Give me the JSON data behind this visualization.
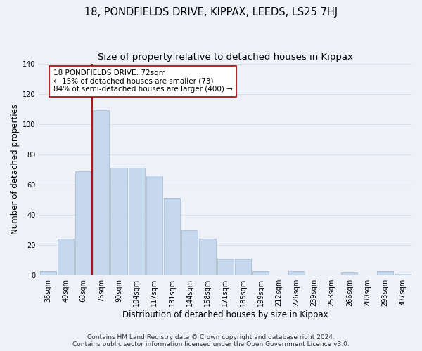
{
  "title": "18, PONDFIELDS DRIVE, KIPPAX, LEEDS, LS25 7HJ",
  "subtitle": "Size of property relative to detached houses in Kippax",
  "xlabel": "Distribution of detached houses by size in Kippax",
  "ylabel": "Number of detached properties",
  "bar_labels": [
    "36sqm",
    "49sqm",
    "63sqm",
    "76sqm",
    "90sqm",
    "104sqm",
    "117sqm",
    "131sqm",
    "144sqm",
    "158sqm",
    "171sqm",
    "185sqm",
    "199sqm",
    "212sqm",
    "226sqm",
    "239sqm",
    "253sqm",
    "266sqm",
    "280sqm",
    "293sqm",
    "307sqm"
  ],
  "bar_values": [
    3,
    24,
    69,
    109,
    71,
    71,
    66,
    51,
    30,
    24,
    11,
    11,
    3,
    0,
    3,
    0,
    0,
    2,
    0,
    3,
    1
  ],
  "bar_color": "#c5d8ed",
  "bar_edge_color": "#aabfd8",
  "vline_x_index": 2.5,
  "vline_color": "#aa0000",
  "annotation_text": "18 PONDFIELDS DRIVE: 72sqm\n← 15% of detached houses are smaller (73)\n84% of semi-detached houses are larger (400) →",
  "annotation_box_edgecolor": "#aa0000",
  "annotation_box_facecolor": "#ffffff",
  "ylim": [
    0,
    140
  ],
  "yticks": [
    0,
    20,
    40,
    60,
    80,
    100,
    120,
    140
  ],
  "footer_line1": "Contains HM Land Registry data © Crown copyright and database right 2024.",
  "footer_line2": "Contains public sector information licensed under the Open Government Licence v3.0.",
  "background_color": "#eef2f8",
  "grid_color": "#d8e0ec",
  "title_fontsize": 10.5,
  "subtitle_fontsize": 9.5,
  "axis_label_fontsize": 8.5,
  "tick_fontsize": 7,
  "annotation_fontsize": 7.5,
  "footer_fontsize": 6.5
}
